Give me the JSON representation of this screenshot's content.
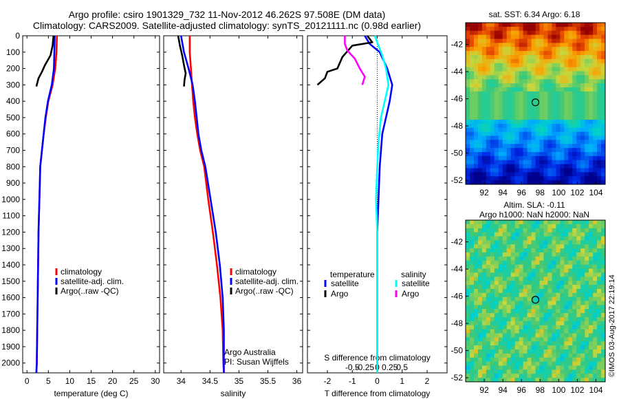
{
  "header": {
    "line1": "Argo profile: csiro 1901329_732 11-Nov-2012 46.262S 97.508E (DM data)",
    "line2": "Climatology: CARS2009. Satellite-adjusted climatology: synTS_20121111.nc (0.98d earlier)"
  },
  "credit": "©IMOS 03-Aug-2017 22:19:14",
  "panel_notes": {
    "line1": "Argo Australia",
    "line2": "PI: Susan Wijffels"
  },
  "colors": {
    "climatology": "#ff0000",
    "satellite": "#0000ff",
    "argo": "#000000",
    "sal_satellite": "#00ffff",
    "sal_argo": "#ff00ff"
  },
  "chart_data": [
    {
      "type": "line",
      "xlabel": "temperature (deg C)",
      "ylabel": "",
      "xlim": [
        -1,
        31
      ],
      "ylim": [
        2060,
        0
      ],
      "xticks": [
        0,
        5,
        10,
        15,
        20,
        25,
        30
      ],
      "yticks": [
        0,
        100,
        200,
        300,
        400,
        500,
        600,
        700,
        800,
        900,
        1000,
        1100,
        1200,
        1300,
        1400,
        1500,
        1600,
        1700,
        1800,
        1900,
        2000
      ],
      "legend": [
        "climatology",
        "satellite-adj. clim.",
        "Argo(..raw -QC)"
      ],
      "series": [
        {
          "name": "climatology",
          "color": "#ff0000",
          "x": [
            7.0,
            6.9,
            6.6,
            6.0,
            5.0,
            4.4,
            3.9,
            3.5,
            3.1,
            2.9,
            2.7,
            2.6,
            2.5,
            2.4,
            2.3,
            2.2
          ],
          "y": [
            0,
            100,
            200,
            300,
            400,
            500,
            600,
            700,
            800,
            1000,
            1200,
            1400,
            1600,
            1800,
            2000,
            2060
          ]
        },
        {
          "name": "satellite-adj. clim.",
          "color": "#0000ff",
          "x": [
            6.5,
            6.4,
            6.3,
            5.8,
            4.9,
            4.3,
            3.9,
            3.5,
            3.1,
            2.9,
            2.7,
            2.6,
            2.5,
            2.4,
            2.3,
            2.2
          ],
          "y": [
            0,
            100,
            200,
            300,
            400,
            500,
            600,
            700,
            800,
            1000,
            1200,
            1400,
            1600,
            1800,
            2000,
            2060
          ]
        },
        {
          "name": "Argo(..raw -QC)",
          "color": "#000000",
          "x": [
            6.2,
            6.0,
            5.5,
            4.2,
            3.5,
            2.7,
            2.2
          ],
          "y": [
            0,
            60,
            120,
            180,
            220,
            260,
            310
          ]
        }
      ]
    },
    {
      "type": "line",
      "xlabel": "salinity",
      "ylabel": "",
      "xlim": [
        33.7,
        36.1
      ],
      "ylim": [
        2060,
        0
      ],
      "xticks": [
        34,
        34.5,
        35,
        35.5,
        36
      ],
      "legend": [
        "climatology",
        "satellite-adj. clim.",
        "Argo(..raw -QC)"
      ],
      "series": [
        {
          "name": "climatology",
          "color": "#ff0000",
          "x": [
            34.15,
            34.15,
            34.17,
            34.19,
            34.21,
            34.24,
            34.28,
            34.33,
            34.4,
            34.47,
            34.55,
            34.62,
            34.68,
            34.72,
            34.73,
            34.74
          ],
          "y": [
            0,
            100,
            200,
            300,
            400,
            500,
            600,
            700,
            800,
            1000,
            1200,
            1400,
            1600,
            1800,
            2000,
            2060
          ]
        },
        {
          "name": "satellite-adj. clim.",
          "color": "#0000ff",
          "x": [
            34.0,
            34.05,
            34.13,
            34.2,
            34.24,
            34.27,
            34.3,
            34.35,
            34.42,
            34.51,
            34.6,
            34.67,
            34.72,
            34.74,
            34.74,
            34.74
          ],
          "y": [
            0,
            100,
            200,
            300,
            400,
            500,
            600,
            700,
            800,
            1000,
            1200,
            1400,
            1600,
            1800,
            2000,
            2060
          ]
        },
        {
          "name": "Argo(..raw -QC)",
          "color": "#000000",
          "x": [
            33.95,
            33.98,
            34.02,
            34.05,
            34.08,
            34.06,
            34.05
          ],
          "y": [
            0,
            60,
            120,
            180,
            230,
            270,
            310
          ]
        }
      ]
    },
    {
      "type": "line",
      "xlabel": "T difference from climatology",
      "x2label": "S difference from climatology",
      "xlim": [
        -2.8,
        2.8
      ],
      "ylim": [
        2060,
        0
      ],
      "xticks": [
        -2,
        -1,
        0,
        1,
        2
      ],
      "x2ticks": [
        -0.5,
        -0.25,
        0,
        0.25,
        0.5
      ],
      "x2ticklabels": [
        "-0.5",
        "-0.25",
        "0",
        "0.25",
        "0.5"
      ],
      "legend_titles": [
        "temperature",
        "salinity"
      ],
      "legend": [
        "satellite",
        "Argo",
        "satellite",
        "Argo"
      ],
      "series": [
        {
          "name": "satellite",
          "group": "temperature",
          "color": "#0000ff",
          "x": [
            -0.5,
            -0.3,
            0.1,
            0.4,
            0.6,
            0.5,
            0.35,
            0.2,
            0.1,
            0.05,
            0.0,
            0.0,
            0.0,
            0.0,
            0.0
          ],
          "y": [
            0,
            50,
            100,
            200,
            300,
            400,
            500,
            600,
            800,
            1000,
            1200,
            1400,
            1600,
            1800,
            2060
          ]
        },
        {
          "name": "Argo",
          "group": "temperature",
          "color": "#000000",
          "x": [
            -0.4,
            -0.2,
            -1.0,
            -1.4,
            -1.6,
            -2.0,
            -2.1,
            -2.4
          ],
          "y": [
            0,
            40,
            60,
            130,
            200,
            220,
            260,
            300
          ]
        },
        {
          "name": "satellite",
          "group": "salinity",
          "color": "#00ffff",
          "x": [
            -0.1,
            0.05,
            0.2,
            0.35,
            0.45,
            0.3,
            0.15,
            0.05,
            0.0,
            -0.05,
            0.0,
            0.0,
            0.0,
            0.0,
            0.0
          ],
          "y": [
            0,
            60,
            120,
            200,
            300,
            400,
            500,
            650,
            800,
            1000,
            1200,
            1400,
            1600,
            1800,
            2060
          ]
        },
        {
          "name": "Argo",
          "group": "salinity",
          "color": "#ff00ff",
          "x": [
            -1.3,
            -1.3,
            -1.2,
            -0.9,
            -0.7,
            -0.5,
            -0.6
          ],
          "y": [
            0,
            50,
            90,
            140,
            200,
            250,
            300
          ]
        }
      ]
    },
    {
      "type": "heatmap",
      "title": "sat. SST: 6.34 Argo: 6.18",
      "xlim": [
        90,
        105
      ],
      "ylim": [
        -52.3,
        -40.4
      ],
      "xticks": [
        92,
        94,
        96,
        98,
        100,
        102,
        104
      ],
      "yticks": [
        -42,
        -44,
        -46,
        -48,
        -50,
        -52
      ],
      "marker": {
        "lon": 97.5,
        "lat": -46.26
      }
    },
    {
      "type": "heatmap",
      "title": "Altim. SLA: -0.11",
      "subtitle": "Argo h1000: NaN h2000: NaN",
      "xlim": [
        90,
        105
      ],
      "ylim": [
        -52.3,
        -40.4
      ],
      "xticks": [
        92,
        94,
        96,
        98,
        100,
        102,
        104
      ],
      "yticks": [
        -42,
        -44,
        -46,
        -48,
        -50,
        -52
      ],
      "marker": {
        "lon": 97.5,
        "lat": -46.26
      }
    }
  ]
}
